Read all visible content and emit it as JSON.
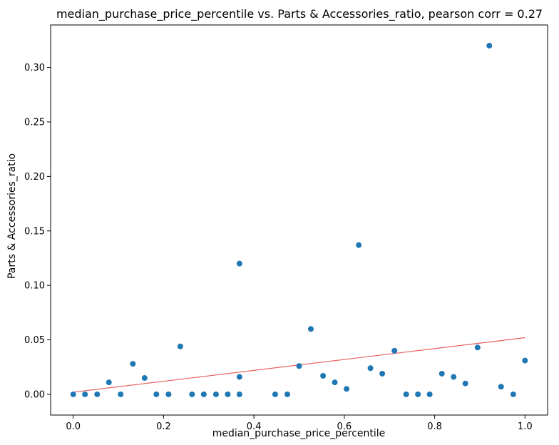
{
  "chart_data": {
    "type": "scatter",
    "title": "median_purchase_price_percentile vs. Parts & Accessories_ratio, pearson corr = 0.27",
    "xlabel": "median_purchase_price_percentile",
    "ylabel": "Parts & Accessories_ratio",
    "xlim": [
      -0.05,
      1.05
    ],
    "ylim": [
      -0.019,
      0.339
    ],
    "xticks": [
      "0.0",
      "0.2",
      "0.4",
      "0.6",
      "0.8",
      "1.0"
    ],
    "yticks": [
      "0.00",
      "0.05",
      "0.10",
      "0.15",
      "0.20",
      "0.25",
      "0.30"
    ],
    "grid": false,
    "series": [
      {
        "kind": "scatter",
        "color": "#1f77b4",
        "points": [
          [
            0.0,
            0.0
          ],
          [
            0.026,
            0.0
          ],
          [
            0.053,
            0.0
          ],
          [
            0.079,
            0.011
          ],
          [
            0.105,
            0.0
          ],
          [
            0.132,
            0.028
          ],
          [
            0.158,
            0.015
          ],
          [
            0.184,
            0.0
          ],
          [
            0.211,
            0.0
          ],
          [
            0.237,
            0.044
          ],
          [
            0.263,
            0.0
          ],
          [
            0.289,
            0.0
          ],
          [
            0.316,
            0.0
          ],
          [
            0.342,
            0.0
          ],
          [
            0.368,
            0.12
          ],
          [
            0.368,
            0.016
          ],
          [
            0.368,
            0.0
          ],
          [
            0.447,
            0.0
          ],
          [
            0.474,
            0.0
          ],
          [
            0.5,
            0.026
          ],
          [
            0.526,
            0.06
          ],
          [
            0.553,
            0.017
          ],
          [
            0.579,
            0.011
          ],
          [
            0.605,
            0.005
          ],
          [
            0.632,
            0.137
          ],
          [
            0.658,
            0.024
          ],
          [
            0.684,
            0.019
          ],
          [
            0.711,
            0.04
          ],
          [
            0.737,
            0.0
          ],
          [
            0.763,
            0.0
          ],
          [
            0.789,
            0.0
          ],
          [
            0.816,
            0.019
          ],
          [
            0.842,
            0.016
          ],
          [
            0.868,
            0.01
          ],
          [
            0.895,
            0.043
          ],
          [
            0.921,
            0.32
          ],
          [
            0.947,
            0.007
          ],
          [
            0.974,
            0.0
          ],
          [
            1.0,
            0.031
          ]
        ]
      },
      {
        "kind": "trendline",
        "color": "#e8605f",
        "x": [
          0.0,
          1.0
        ],
        "y": [
          0.002,
          0.052
        ]
      }
    ]
  }
}
